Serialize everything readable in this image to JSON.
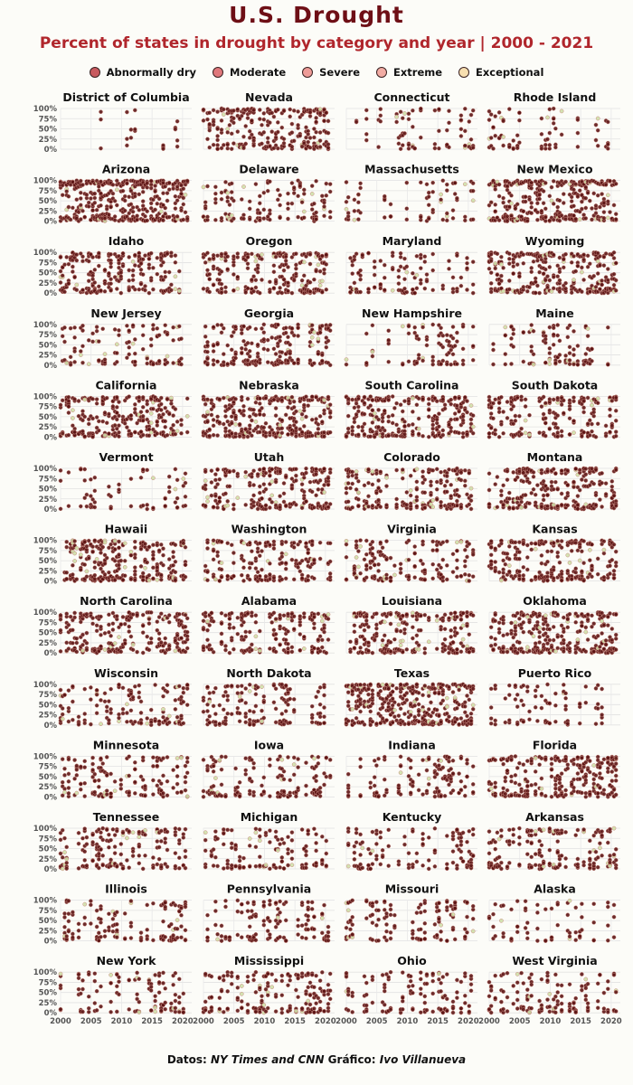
{
  "title": "U.S. Drought",
  "subtitle": "Percent of states in drought by category and year | 2000 - 2021",
  "legend": [
    {
      "label": "Abnormally dry",
      "color": "#c85a5f"
    },
    {
      "label": "Moderate",
      "color": "#e0787c"
    },
    {
      "label": "Severe",
      "color": "#ee9c98"
    },
    {
      "label": "Extreme",
      "color": "#f2aca4"
    },
    {
      "label": "Exceptional",
      "color": "#f7dfb0"
    }
  ],
  "caption": {
    "prefix": "Datos: ",
    "source": "NY Times and CNN",
    "middle": "  Gráfico: ",
    "author": "Ivo Villanueva"
  },
  "chart_data": {
    "type": "scatter",
    "facet_by": "state",
    "layout": "4 columns x 13 rows",
    "x_ticks": [
      "2000",
      "2005",
      "2010",
      "2015",
      "2020"
    ],
    "y_ticks": [
      "0%",
      "25%",
      "50%",
      "75%",
      "100%"
    ],
    "xlim": [
      2000,
      2021.5
    ],
    "ylim": [
      0,
      100
    ],
    "grid": true,
    "legend_position": "top",
    "series_names": [
      "Abnormally dry",
      "Moderate",
      "Severe",
      "Extreme",
      "Exceptional"
    ],
    "point_fill": "#5c1414",
    "point_stroke": "#c98a80",
    "highlight_fill": "#cfe0a8",
    "facets": [
      {
        "state": "District of Columbia",
        "density": 0.12
      },
      {
        "state": "Nevada",
        "density": 0.75
      },
      {
        "state": "Connecticut",
        "density": 0.3
      },
      {
        "state": "Rhode Island",
        "density": 0.3
      },
      {
        "state": "Arizona",
        "density": 0.95
      },
      {
        "state": "Delaware",
        "density": 0.35
      },
      {
        "state": "Massachusetts",
        "density": 0.3
      },
      {
        "state": "New Mexico",
        "density": 0.9
      },
      {
        "state": "Idaho",
        "density": 0.7
      },
      {
        "state": "Oregon",
        "density": 0.7
      },
      {
        "state": "Maryland",
        "density": 0.45
      },
      {
        "state": "Wyoming",
        "density": 0.8
      },
      {
        "state": "New Jersey",
        "density": 0.35
      },
      {
        "state": "Georgia",
        "density": 0.75
      },
      {
        "state": "New Hampshire",
        "density": 0.35
      },
      {
        "state": "Maine",
        "density": 0.4
      },
      {
        "state": "California",
        "density": 0.75
      },
      {
        "state": "Nebraska",
        "density": 0.7
      },
      {
        "state": "South Carolina",
        "density": 0.75
      },
      {
        "state": "South Dakota",
        "density": 0.7
      },
      {
        "state": "Vermont",
        "density": 0.3
      },
      {
        "state": "Utah",
        "density": 0.75
      },
      {
        "state": "Colorado",
        "density": 0.75
      },
      {
        "state": "Montana",
        "density": 0.75
      },
      {
        "state": "Hawaii",
        "density": 0.8
      },
      {
        "state": "Washington",
        "density": 0.6
      },
      {
        "state": "Virginia",
        "density": 0.55
      },
      {
        "state": "Kansas",
        "density": 0.75
      },
      {
        "state": "North Carolina",
        "density": 0.65
      },
      {
        "state": "Alabama",
        "density": 0.7
      },
      {
        "state": "Louisiana",
        "density": 0.7
      },
      {
        "state": "Oklahoma",
        "density": 0.8
      },
      {
        "state": "Wisconsin",
        "density": 0.5
      },
      {
        "state": "North Dakota",
        "density": 0.6
      },
      {
        "state": "Texas",
        "density": 0.95
      },
      {
        "state": "Puerto Rico",
        "density": 0.35
      },
      {
        "state": "Minnesota",
        "density": 0.55
      },
      {
        "state": "Iowa",
        "density": 0.55
      },
      {
        "state": "Indiana",
        "density": 0.45
      },
      {
        "state": "Florida",
        "density": 0.75
      },
      {
        "state": "Tennessee",
        "density": 0.55
      },
      {
        "state": "Michigan",
        "density": 0.5
      },
      {
        "state": "Kentucky",
        "density": 0.45
      },
      {
        "state": "Arkansas",
        "density": 0.6
      },
      {
        "state": "Illinois",
        "density": 0.45
      },
      {
        "state": "Pennsylvania",
        "density": 0.45
      },
      {
        "state": "Missouri",
        "density": 0.55
      },
      {
        "state": "Alaska",
        "density": 0.25
      },
      {
        "state": "New York",
        "density": 0.4
      },
      {
        "state": "Mississippi",
        "density": 0.6
      },
      {
        "state": "Ohio",
        "density": 0.4
      },
      {
        "state": "West Virginia",
        "density": 0.45
      }
    ]
  }
}
